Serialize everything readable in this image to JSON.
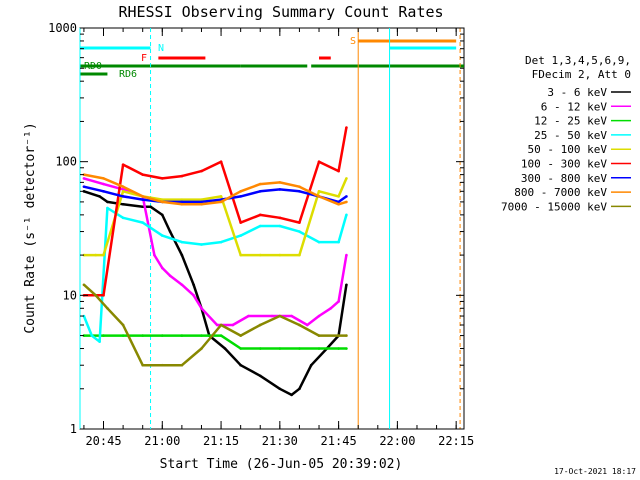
{
  "chart_data": {
    "type": "line",
    "title": "RHESSI Observing Summary Count Rates",
    "xlabel": "Start Time (26-Jun-05 20:39:02)",
    "ylabel": "Count Rate (s⁻¹ detector⁻¹)",
    "y_scale": "log",
    "ylim": [
      1,
      1000
    ],
    "xlim": [
      "20:39",
      "22:17"
    ],
    "x_ticks": [
      "20:45",
      "21:00",
      "21:15",
      "21:30",
      "21:45",
      "22:00",
      "22:15"
    ],
    "y_ticks": [
      "1",
      "10",
      "100",
      "1000"
    ],
    "legend_placement": "right",
    "legend_header": [
      "Det 1,3,4,5,6,9,",
      "FDecim 2, Att 0"
    ],
    "series": [
      {
        "name": "3 - 6 keV",
        "color": "#000000",
        "x": [
          "20:40",
          "20:44",
          "20:46",
          "20:50",
          "20:55",
          "20:57",
          "21:00",
          "21:02",
          "21:05",
          "21:08",
          "21:10",
          "21:12",
          "21:16",
          "21:20",
          "21:25",
          "21:30",
          "21:33",
          "21:35",
          "21:38",
          "21:42",
          "21:45",
          "21:47"
        ],
        "y": [
          60,
          55,
          50,
          48,
          46,
          46,
          40,
          30,
          20,
          12,
          8,
          5,
          4,
          3,
          2.5,
          2,
          1.8,
          2,
          3,
          4,
          5,
          12
        ]
      },
      {
        "name": "6 - 12 keV",
        "color": "#ff00ff",
        "x": [
          "20:40",
          "20:45",
          "20:50",
          "20:55",
          "20:58",
          "21:00",
          "21:02",
          "21:05",
          "21:08",
          "21:10",
          "21:14",
          "21:18",
          "21:22",
          "21:28",
          "21:33",
          "21:37",
          "21:40",
          "21:43",
          "21:45",
          "21:47"
        ],
        "y": [
          75,
          68,
          62,
          55,
          20,
          16,
          14,
          12,
          10,
          8,
          6,
          6,
          7,
          7,
          7,
          6,
          7,
          8,
          9,
          20
        ]
      },
      {
        "name": "12 - 25 keV",
        "color": "#00dd00",
        "x": [
          "20:40",
          "20:45",
          "20:50",
          "20:55",
          "21:00",
          "21:05",
          "21:10",
          "21:15",
          "21:20",
          "21:25",
          "21:30",
          "21:35",
          "21:40",
          "21:45",
          "21:47"
        ],
        "y": [
          5,
          5,
          5,
          5,
          5,
          5,
          5,
          5,
          4,
          4,
          4,
          4,
          4,
          4,
          4
        ]
      },
      {
        "name": "25 - 50 keV",
        "color": "#00ffff",
        "x": [
          "20:40",
          "20:42",
          "20:44",
          "20:46",
          "20:50",
          "20:55",
          "21:00",
          "21:05",
          "21:10",
          "21:15",
          "21:20",
          "21:25",
          "21:30",
          "21:35",
          "21:40",
          "21:45",
          "21:47"
        ],
        "y": [
          7,
          5,
          4.5,
          45,
          38,
          35,
          28,
          25,
          24,
          25,
          28,
          33,
          33,
          30,
          25,
          25,
          40
        ]
      },
      {
        "name": "50 - 100 keV",
        "color": "#dddd00",
        "x": [
          "20:40",
          "20:43",
          "20:45",
          "20:50",
          "20:55",
          "21:00",
          "21:05",
          "21:10",
          "21:15",
          "21:20",
          "21:25",
          "21:30",
          "21:35",
          "21:40",
          "21:45",
          "21:47"
        ],
        "y": [
          20,
          20,
          20,
          60,
          55,
          52,
          52,
          52,
          55,
          20,
          20,
          20,
          20,
          60,
          55,
          75
        ]
      },
      {
        "name": "100 - 300 keV",
        "color": "#ff0000",
        "x": [
          "20:40",
          "20:43",
          "20:45",
          "20:50",
          "20:55",
          "21:00",
          "21:05",
          "21:10",
          "21:15",
          "21:20",
          "21:25",
          "21:30",
          "21:35",
          "21:40",
          "21:45",
          "21:47"
        ],
        "y": [
          10,
          10,
          10,
          95,
          80,
          75,
          78,
          85,
          100,
          35,
          40,
          38,
          35,
          100,
          85,
          180
        ]
      },
      {
        "name": "300 - 800 keV",
        "color": "#0000ff",
        "x": [
          "20:40",
          "20:45",
          "20:50",
          "20:55",
          "21:00",
          "21:05",
          "21:10",
          "21:15",
          "21:20",
          "21:25",
          "21:30",
          "21:35",
          "21:40",
          "21:45",
          "21:47"
        ],
        "y": [
          65,
          60,
          55,
          52,
          50,
          50,
          50,
          52,
          55,
          60,
          62,
          60,
          55,
          50,
          55
        ]
      },
      {
        "name": "800 - 7000 keV",
        "color": "#ff8800",
        "x": [
          "20:40",
          "20:45",
          "20:50",
          "20:55",
          "21:00",
          "21:05",
          "21:10",
          "21:15",
          "21:20",
          "21:25",
          "21:30",
          "21:35",
          "21:40",
          "21:45",
          "21:47"
        ],
        "y": [
          80,
          75,
          65,
          55,
          50,
          48,
          48,
          50,
          60,
          68,
          70,
          65,
          55,
          48,
          50
        ]
      },
      {
        "name": "7000 - 15000 keV",
        "color": "#888800",
        "x": [
          "20:40",
          "20:43",
          "20:46",
          "20:50",
          "20:55",
          "21:00",
          "21:05",
          "21:10",
          "21:15",
          "21:20",
          "21:25",
          "21:30",
          "21:35",
          "21:40",
          "21:45",
          "21:47"
        ],
        "y": [
          12,
          10,
          8,
          6,
          3,
          3,
          3,
          4,
          6,
          5,
          6,
          7,
          6,
          5,
          5,
          5
        ]
      }
    ],
    "flag_lines": [
      {
        "label": "N",
        "color": "#00ffff",
        "intervals": [
          [
            "20:39",
            "20:57"
          ],
          [
            "21:58",
            "22:15"
          ]
        ]
      },
      {
        "label": "F",
        "color": "#ff0000",
        "intervals": [
          [
            "20:59",
            "21:11"
          ],
          [
            "21:40",
            "21:43"
          ]
        ]
      },
      {
        "label": "S",
        "color": "#ff8800",
        "intervals": [
          [
            "21:50",
            "22:15"
          ]
        ]
      },
      {
        "label": "RD0",
        "color": "#008800",
        "intervals": [
          [
            "20:39",
            "21:20"
          ],
          [
            "21:20",
            "21:37"
          ],
          [
            "21:38",
            "22:17"
          ]
        ]
      },
      {
        "label": "RD6",
        "color": "#008800",
        "intervals": [
          [
            "20:39",
            "20:46"
          ]
        ]
      }
    ],
    "vertical_markers": [
      {
        "x": "20:39",
        "color": "#00ffff",
        "style": "solid"
      },
      {
        "x": "20:57",
        "color": "#00ffff",
        "style": "dashed"
      },
      {
        "x": "21:50",
        "color": "#ff8800",
        "style": "solid"
      },
      {
        "x": "21:58",
        "color": "#00ffff",
        "style": "solid"
      },
      {
        "x": "22:16",
        "color": "#ff8800",
        "style": "dashed"
      }
    ]
  },
  "footer": {
    "timestamp": "17-Oct-2021 18:17"
  }
}
